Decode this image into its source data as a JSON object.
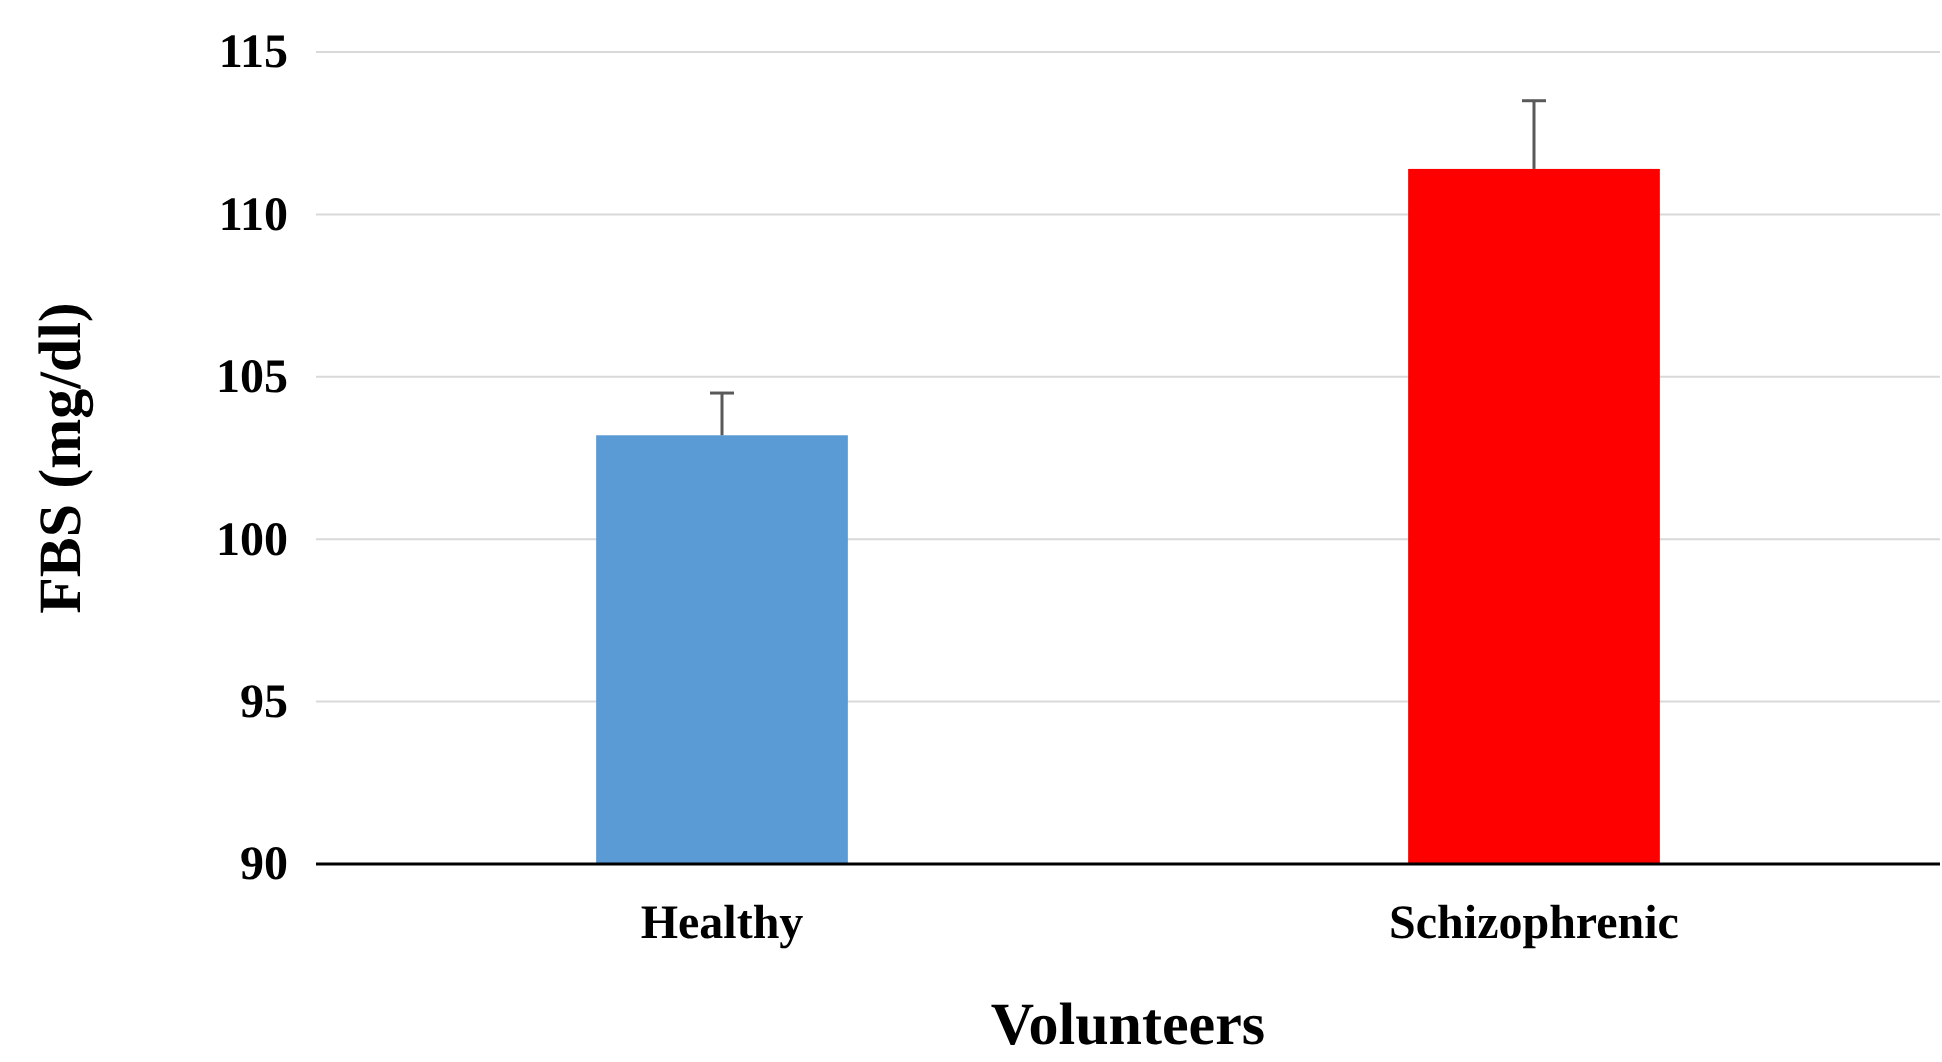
{
  "chart_data": {
    "type": "bar",
    "xlabel": "Volunteers",
    "ylabel": "FBS (mg/dl)",
    "categories": [
      "Healthy",
      "Schizophrenic"
    ],
    "values": [
      103.2,
      111.4
    ],
    "colors": [
      "#5b9bd5",
      "#ff0000"
    ],
    "errors": [
      [
        103.2,
        104.5
      ],
      [
        111.4,
        113.5
      ]
    ],
    "ylim": [
      90,
      115
    ],
    "yticks": [
      90,
      95,
      100,
      105,
      110,
      115
    ],
    "grid": "y"
  }
}
